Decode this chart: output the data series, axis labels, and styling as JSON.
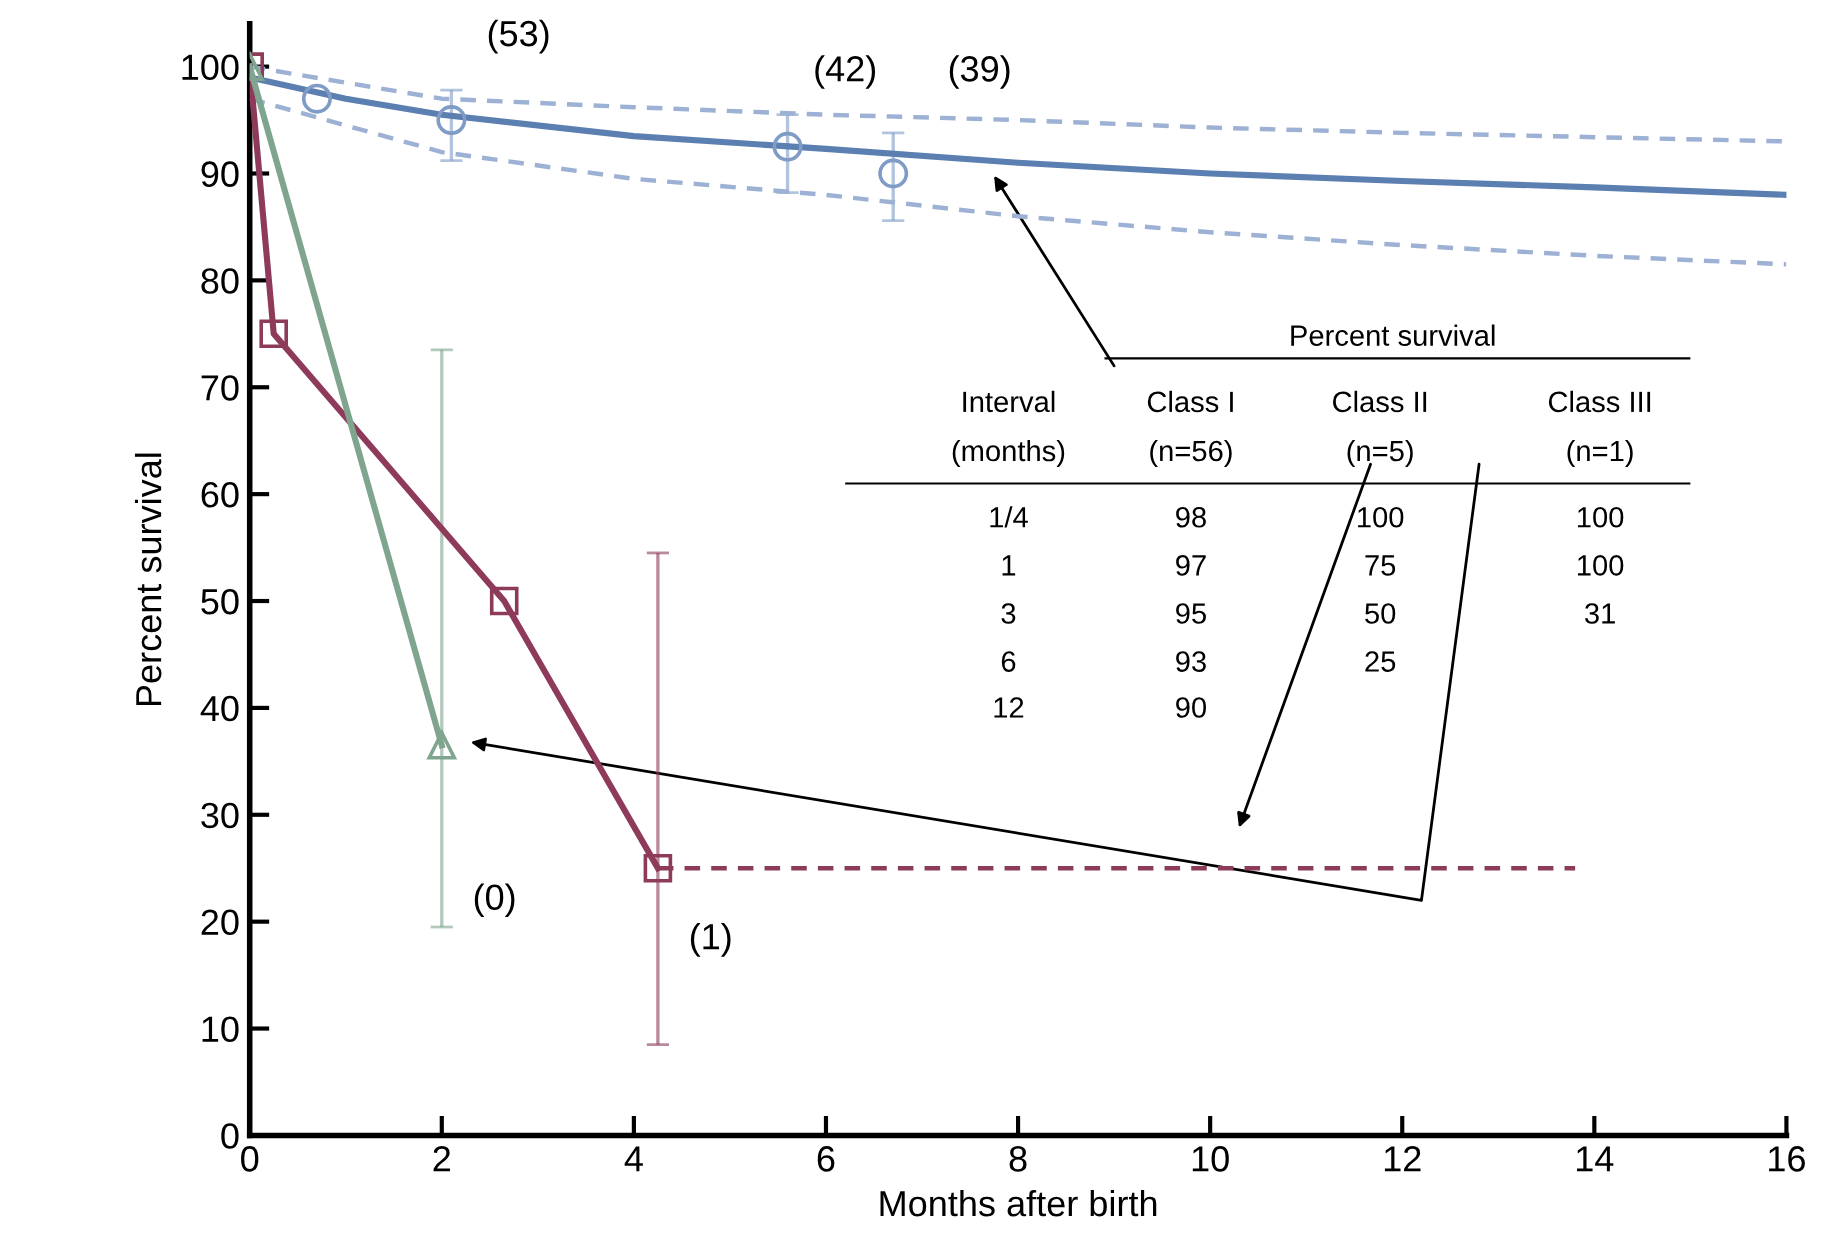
{
  "chart_data": {
    "type": "line",
    "xlabel": "Months after birth",
    "ylabel": "Percent survival",
    "xlim": [
      0,
      16
    ],
    "xticks": [
      0,
      2,
      4,
      6,
      8,
      10,
      12,
      14,
      16
    ],
    "ylim": [
      0,
      104
    ],
    "yticks": [
      0,
      10,
      20,
      30,
      40,
      50,
      60,
      70,
      80,
      90,
      100
    ],
    "grid": false,
    "legend": false,
    "series": [
      {
        "color": "#5b7fb0",
        "x": [
          0,
          1,
          2,
          4,
          6,
          8,
          10,
          12,
          14,
          16
        ],
        "values": [
          99,
          97,
          95.5,
          93.5,
          92.3,
          91,
          90,
          89.3,
          88.7,
          88
        ],
        "marker": "none",
        "line_style": "solid"
      },
      {
        "color": "#9cb1d3",
        "x": [
          0,
          1,
          2,
          4,
          6,
          8,
          10,
          12,
          14,
          16
        ],
        "values": [
          100,
          98.5,
          97,
          96.2,
          95.5,
          95,
          94.3,
          93.8,
          93.4,
          93
        ],
        "marker": "none",
        "line_style": "dashed"
      },
      {
        "color": "#9cb1d3",
        "x": [
          0,
          1,
          2,
          4,
          6,
          8,
          10,
          12,
          14,
          16
        ],
        "values": [
          97,
          94.5,
          92,
          89.5,
          88,
          86,
          84.5,
          83.3,
          82.3,
          81.5
        ],
        "marker": "none",
        "line_style": "dashed"
      },
      {
        "type": "scatter",
        "color": "#7f9cc6",
        "x": [
          0.7,
          2.1,
          5.6,
          6.7
        ],
        "values": [
          97,
          95,
          92.5,
          90
        ],
        "errors": [
          null,
          [
            91.2,
            97.8
          ],
          [
            88.2,
            95.5
          ],
          [
            85.6,
            93.8
          ]
        ],
        "marker": "circle"
      },
      {
        "color": "#8e3b5b",
        "x": [
          0,
          0.25,
          2.65,
          4.25
        ],
        "values": [
          100,
          75,
          50,
          25
        ],
        "errors": [
          null,
          null,
          null,
          [
            8.5,
            54.5
          ]
        ],
        "marker": "square",
        "line_style": "solid"
      },
      {
        "color": "#8e3b5b",
        "x": [
          4.25,
          13.8
        ],
        "values": [
          25,
          25
        ],
        "marker": "none",
        "line_style": "dashed"
      },
      {
        "color": "#7fa58f",
        "x": [
          0,
          2
        ],
        "values": [
          100,
          36.5
        ],
        "errors": [
          null,
          [
            19.5,
            73.5
          ]
        ],
        "marker": "triangle",
        "line_style": "solid"
      }
    ],
    "annotations": [
      "(53)",
      "(42)",
      "(39)",
      "(0)",
      "(1)",
      "Percent survival",
      "Interval",
      "Class I",
      "Class II",
      "Class III",
      "(months)",
      "(n=56)",
      "(n=5)",
      "(n=1)",
      "1/4",
      "98",
      "100",
      "100",
      "1",
      "97",
      "75",
      "100",
      "3",
      "95",
      "50",
      "31",
      "6",
      "93",
      "25",
      "12",
      "90"
    ]
  }
}
